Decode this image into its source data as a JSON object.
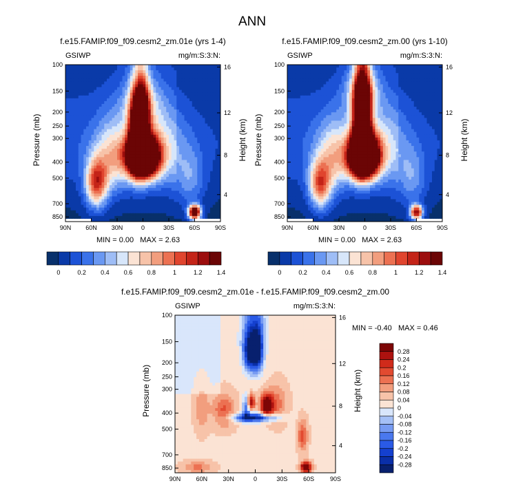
{
  "chart_data": {
    "type": "heatmap",
    "title": "ANN",
    "panels": [
      {
        "id": "p1",
        "title": "f.e15.FAMIP.f09_f09.cesm2_zm.01e (yrs 1-4)",
        "left_label": "GSIWP",
        "right_label": "mg/m:S:3:N:",
        "ylabel": "Pressure (mb)",
        "y2label": "Height (km)",
        "xticks": [
          "90N",
          "60N",
          "30N",
          "0",
          "30S",
          "60S",
          "90S"
        ],
        "yticks": [
          "100",
          "150",
          "200",
          "250",
          "300",
          "400",
          "500",
          "700",
          "850"
        ],
        "y2ticks": [
          "16",
          "12",
          "8",
          "4"
        ],
        "stats": {
          "min_label": "MIN =",
          "min": "0.00",
          "max_label": "MAX =",
          "max": "2.63"
        },
        "field": "ctrl",
        "xlim": [
          90,
          -90
        ],
        "ylim": [
          100,
          900
        ]
      },
      {
        "id": "p2",
        "title": "f.e15.FAMIP.f09_f09.cesm2_zm.00 (yrs 1-10)",
        "left_label": "GSIWP",
        "right_label": "mg/m:S:3:N:",
        "ylabel": "Pressure (mb)",
        "y2label": "Height (km)",
        "xticks": [
          "90N",
          "60N",
          "30N",
          "0",
          "30S",
          "60S",
          "90S"
        ],
        "yticks": [
          "100",
          "150",
          "200",
          "250",
          "300",
          "400",
          "500",
          "700",
          "850"
        ],
        "y2ticks": [
          "16",
          "12",
          "8",
          "4"
        ],
        "stats": {
          "min_label": "MIN =",
          "min": "0.00",
          "max_label": "MAX =",
          "max": "2.63"
        },
        "field": "ctrl2",
        "xlim": [
          90,
          -90
        ],
        "ylim": [
          100,
          900
        ]
      },
      {
        "id": "p3",
        "title": "f.e15.FAMIP.f09_f09.cesm2_zm.01e - f.e15.FAMIP.f09_f09.cesm2_zm.00",
        "left_label": "GSIWP",
        "right_label": "mg/m:S:3:N:",
        "ylabel": "Pressure (mb)",
        "y2label": "Height (km)",
        "xticks": [
          "90N",
          "60N",
          "30N",
          "0",
          "30S",
          "60S",
          "90S"
        ],
        "yticks": [
          "100",
          "150",
          "200",
          "250",
          "300",
          "400",
          "500",
          "700",
          "850"
        ],
        "y2ticks": [
          "16",
          "12",
          "8",
          "4"
        ],
        "stats": {
          "min_label": "MIN =",
          "min": "-0.40",
          "max_label": "MAX =",
          "max": "0.46"
        },
        "field": "diff",
        "xlim": [
          90,
          -90
        ],
        "ylim": [
          100,
          900
        ]
      }
    ],
    "colorbar_abs": {
      "colors": [
        "#08306b",
        "#0a3aa8",
        "#1c52d6",
        "#3a72ea",
        "#6a98f2",
        "#9ebdf6",
        "#d7e6fa",
        "#fbe3d4",
        "#f7c3a9",
        "#f29e7e",
        "#ec7152",
        "#e0452e",
        "#c42418",
        "#9c0d0d",
        "#6b0505"
      ],
      "labels": [
        "0",
        "0.2",
        "0.4",
        "0.6",
        "0.8",
        "1",
        "1.2",
        "1.4"
      ]
    },
    "colorbar_diff": {
      "colors": [
        "#08206e",
        "#0a2fa8",
        "#1440cf",
        "#2a5ae6",
        "#4a78ee",
        "#779bf2",
        "#a5c0f6",
        "#d9e6fb",
        "#fbe3d4",
        "#f7c3a9",
        "#f29e7e",
        "#ec7152",
        "#e24a30",
        "#d02b1b",
        "#ad120f",
        "#7d0606"
      ],
      "labels": [
        "0.28",
        "0.24",
        "0.2",
        "0.16",
        "0.12",
        "0.08",
        "0.04",
        "0",
        "-0.04",
        "-0.08",
        "-0.12",
        "-0.16",
        "-0.2",
        "-0.24",
        "-0.28"
      ]
    }
  }
}
